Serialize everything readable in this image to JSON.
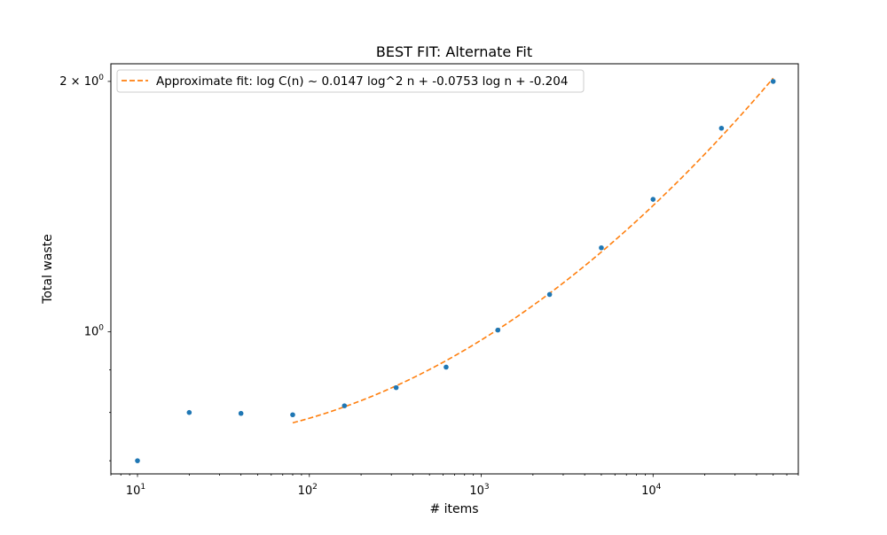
{
  "chart_data": {
    "type": "scatter",
    "title": "BEST FIT: Alternate Fit",
    "xlabel": "# items",
    "ylabel": "Total waste",
    "x_scale": "log",
    "y_scale": "log",
    "xlim": [
      7,
      70000
    ],
    "ylim": [
      0.675,
      2.1
    ],
    "x_ticks": [
      {
        "value": 10,
        "base": "10",
        "exp": "1"
      },
      {
        "value": 100,
        "base": "10",
        "exp": "2"
      },
      {
        "value": 1000,
        "base": "10",
        "exp": "3"
      },
      {
        "value": 10000,
        "base": "10",
        "exp": "4"
      }
    ],
    "y_ticks": [
      {
        "value": 1.0,
        "base": "10",
        "exp": "0"
      },
      {
        "value": 2.0,
        "prefix": "2 × ",
        "base": "10",
        "exp": "0"
      }
    ],
    "grid": false,
    "legend_position": "upper-left",
    "series": [
      {
        "kind": "points",
        "color": "#1f77b4",
        "x": [
          10,
          20,
          40,
          80,
          160,
          320,
          625,
          1250,
          2500,
          5000,
          10000,
          25000,
          50000
        ],
        "y": [
          0.7,
          0.8,
          0.798,
          0.795,
          0.815,
          0.857,
          0.907,
          1.005,
          1.109,
          1.262,
          1.443,
          1.757,
          2.0
        ]
      },
      {
        "kind": "fit-line",
        "name": "Approximate fit: log C(n) ~ 0.0147 log^2 n + -0.0753 log n + -0.204",
        "color": "#ff7f0e",
        "linestyle": "dashed",
        "coefficients": {
          "a": 0.0147,
          "b": -0.0753,
          "c": -0.204
        },
        "x_range": [
          80,
          50000
        ]
      }
    ]
  }
}
